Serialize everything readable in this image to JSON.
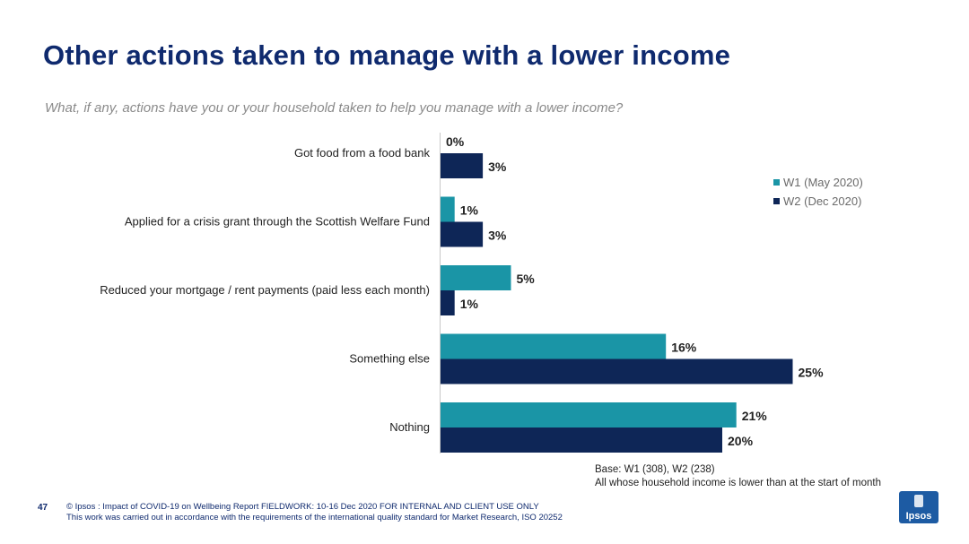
{
  "header": {
    "title": "Other actions taken to manage with a lower income",
    "subtitle": "What, if any, actions have you or your household taken to help you manage with a lower income?"
  },
  "colors": {
    "w1": "#1a95a6",
    "w2": "#0e2657",
    "title": "#0f2a6e"
  },
  "chart_data": {
    "type": "bar",
    "orientation": "horizontal",
    "categories": [
      "Got food from a food bank",
      "Applied for a crisis grant through the Scottish Welfare Fund",
      "Reduced your mortgage / rent payments (paid less each month)",
      "Something else",
      "Nothing"
    ],
    "series": [
      {
        "name": "W1 (May 2020)",
        "values": [
          0,
          1,
          5,
          16,
          21
        ],
        "labels": [
          "0%",
          "1%",
          "5%",
          "16%",
          "21%"
        ]
      },
      {
        "name": "W2 (Dec 2020)",
        "values": [
          3,
          3,
          1,
          25,
          20
        ],
        "labels": [
          "3%",
          "3%",
          "1%",
          "25%",
          "20%"
        ]
      }
    ],
    "xlim": [
      0,
      25
    ],
    "legend_position": "right",
    "grid": false
  },
  "notes": {
    "base_line1": "Base: W1 (308), W2 (238)",
    "base_line2": "All whose household income is lower than at the start of month"
  },
  "footer": {
    "page_number": "47",
    "line1": "© Ipsos : Impact of COVID-19 on Wellbeing Report FIELDWORK: 10-16 Dec 2020 FOR INTERNAL AND CLIENT USE ONLY",
    "line2": "This work was carried out in accordance with the requirements of the international quality standard for Market Research, ISO 20252",
    "logo_text": "Ipsos"
  }
}
